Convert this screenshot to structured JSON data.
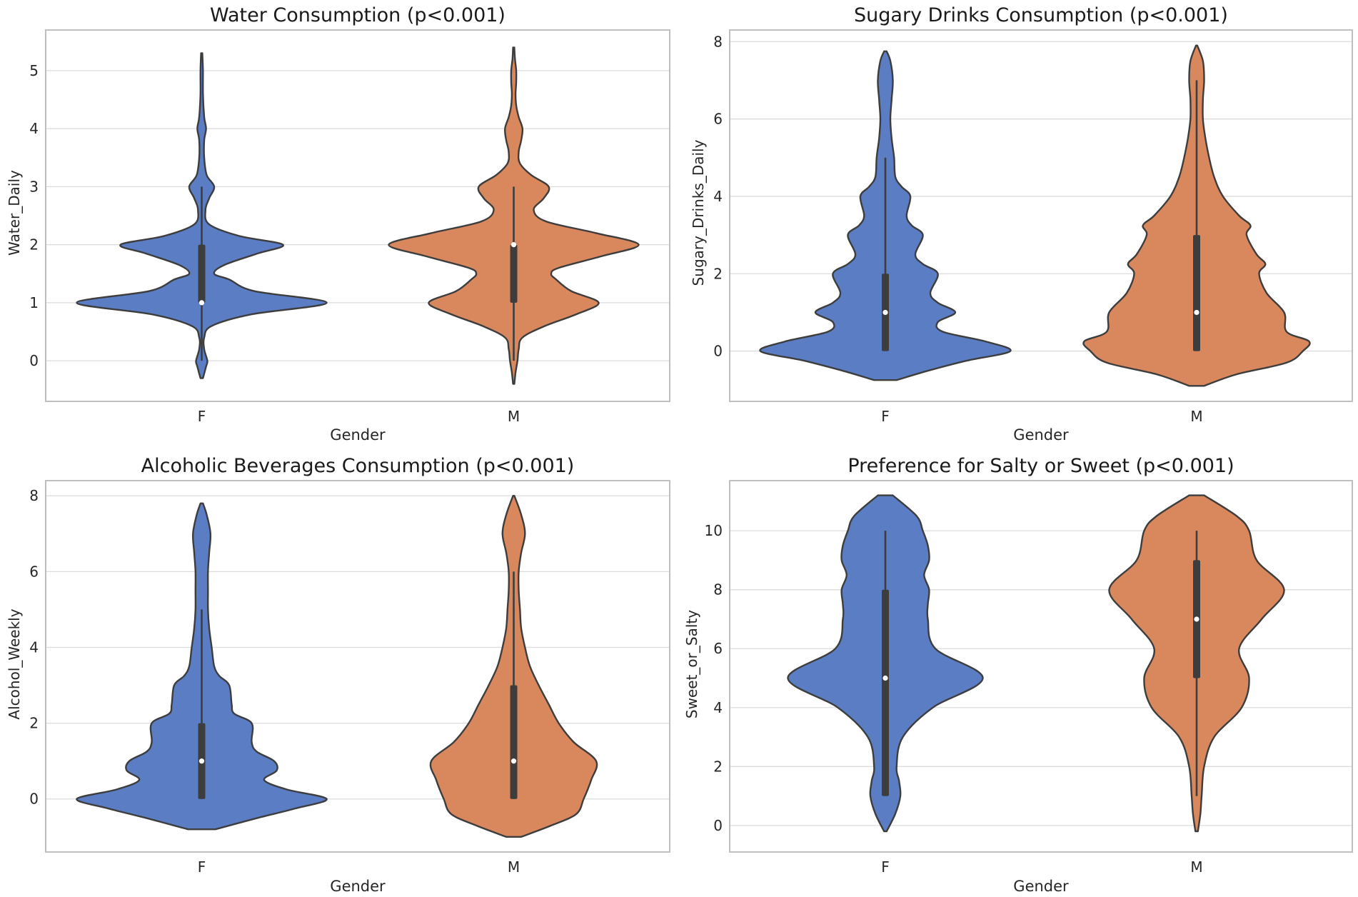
{
  "figure": {
    "colors": {
      "F": "#5a7dc4",
      "M": "#d9885e",
      "grid": "#dcdcdc",
      "axis_frame": "#bfbfbf",
      "outline": "#3d3d3d",
      "box": "#3d3d3d",
      "median": "#ffffff"
    }
  },
  "chart_data": [
    {
      "type": "violin",
      "title": "Water Consumption (p<0.001)",
      "xlabel": "Gender",
      "ylabel": "Water_Daily",
      "categories": [
        "F",
        "M"
      ],
      "ylim": [
        -0.7,
        5.7
      ],
      "yticks": [
        0,
        1,
        2,
        3,
        4,
        5
      ],
      "ytick_labels": [
        "0",
        "1",
        "2",
        "3",
        "4",
        "5"
      ],
      "violins": [
        {
          "category": "F",
          "q1": 1,
          "median": 1,
          "q3": 2,
          "whisker_low": 0,
          "whisker_high": 3,
          "density": [
            [
              -0.3,
              0.01
            ],
            [
              -0.1,
              0.035
            ],
            [
              0.0,
              0.045
            ],
            [
              0.2,
              0.02
            ],
            [
              0.4,
              0.02
            ],
            [
              0.6,
              0.08
            ],
            [
              0.8,
              0.4
            ],
            [
              1.0,
              1.0
            ],
            [
              1.2,
              0.42
            ],
            [
              1.4,
              0.22
            ],
            [
              1.5,
              0.1
            ],
            [
              1.65,
              0.18
            ],
            [
              1.85,
              0.45
            ],
            [
              2.0,
              0.65
            ],
            [
              2.15,
              0.3
            ],
            [
              2.35,
              0.06
            ],
            [
              2.6,
              0.03
            ],
            [
              2.8,
              0.06
            ],
            [
              3.0,
              0.1
            ],
            [
              3.2,
              0.04
            ],
            [
              3.5,
              0.02
            ],
            [
              3.8,
              0.02
            ],
            [
              4.0,
              0.035
            ],
            [
              4.2,
              0.02
            ],
            [
              4.6,
              0.01
            ],
            [
              5.0,
              0.01
            ],
            [
              5.3,
              0.005
            ]
          ]
        },
        {
          "category": "M",
          "q1": 1,
          "median": 2,
          "q3": 2,
          "whisker_low": 0,
          "whisker_high": 3,
          "density": [
            [
              -0.4,
              0.005
            ],
            [
              -0.2,
              0.015
            ],
            [
              0.0,
              0.03
            ],
            [
              0.2,
              0.04
            ],
            [
              0.4,
              0.07
            ],
            [
              0.6,
              0.25
            ],
            [
              0.8,
              0.5
            ],
            [
              1.0,
              0.68
            ],
            [
              1.2,
              0.46
            ],
            [
              1.4,
              0.34
            ],
            [
              1.5,
              0.3
            ],
            [
              1.6,
              0.36
            ],
            [
              1.8,
              0.7
            ],
            [
              2.0,
              1.0
            ],
            [
              2.2,
              0.66
            ],
            [
              2.4,
              0.26
            ],
            [
              2.6,
              0.16
            ],
            [
              2.8,
              0.24
            ],
            [
              3.0,
              0.28
            ],
            [
              3.2,
              0.14
            ],
            [
              3.4,
              0.05
            ],
            [
              3.6,
              0.04
            ],
            [
              3.8,
              0.06
            ],
            [
              4.0,
              0.07
            ],
            [
              4.2,
              0.04
            ],
            [
              4.4,
              0.02
            ],
            [
              4.6,
              0.015
            ],
            [
              4.8,
              0.02
            ],
            [
              5.0,
              0.02
            ],
            [
              5.2,
              0.01
            ],
            [
              5.4,
              0.005
            ]
          ]
        }
      ]
    },
    {
      "type": "violin",
      "title": "Sugary Drinks Consumption (p<0.001)",
      "xlabel": "Gender",
      "ylabel": "Sugary_Drinks_Daily",
      "categories": [
        "F",
        "M"
      ],
      "ylim": [
        -1.3,
        8.3
      ],
      "yticks": [
        0,
        2,
        4,
        6,
        8
      ],
      "ytick_labels": [
        "0",
        "2",
        "4",
        "6",
        "8"
      ],
      "violins": [
        {
          "category": "F",
          "q1": 0,
          "median": 1,
          "q3": 2,
          "whisker_low": 0,
          "whisker_high": 5,
          "density": [
            [
              -0.75,
              0.09
            ],
            [
              -0.5,
              0.35
            ],
            [
              -0.25,
              0.65
            ],
            [
              0.0,
              1.0
            ],
            [
              0.25,
              0.8
            ],
            [
              0.5,
              0.46
            ],
            [
              0.75,
              0.42
            ],
            [
              1.0,
              0.56
            ],
            [
              1.25,
              0.42
            ],
            [
              1.5,
              0.36
            ],
            [
              2.0,
              0.42
            ],
            [
              2.25,
              0.3
            ],
            [
              2.5,
              0.24
            ],
            [
              3.0,
              0.3
            ],
            [
              3.25,
              0.21
            ],
            [
              3.5,
              0.17
            ],
            [
              4.0,
              0.2
            ],
            [
              4.25,
              0.13
            ],
            [
              4.5,
              0.08
            ],
            [
              5.0,
              0.07
            ],
            [
              5.5,
              0.05
            ],
            [
              6.0,
              0.04
            ],
            [
              6.5,
              0.05
            ],
            [
              7.0,
              0.06
            ],
            [
              7.5,
              0.04
            ],
            [
              7.75,
              0.01
            ]
          ]
        },
        {
          "category": "M",
          "q1": 0,
          "median": 1,
          "q3": 3,
          "whisker_low": 0,
          "whisker_high": 7,
          "density": [
            [
              -0.9,
              0.06
            ],
            [
              -0.6,
              0.32
            ],
            [
              -0.3,
              0.72
            ],
            [
              0.0,
              0.85
            ],
            [
              0.25,
              0.9
            ],
            [
              0.5,
              0.72
            ],
            [
              1.0,
              0.7
            ],
            [
              1.5,
              0.56
            ],
            [
              2.0,
              0.5
            ],
            [
              2.25,
              0.55
            ],
            [
              2.5,
              0.48
            ],
            [
              3.0,
              0.4
            ],
            [
              3.25,
              0.43
            ],
            [
              3.5,
              0.34
            ],
            [
              4.0,
              0.21
            ],
            [
              4.5,
              0.14
            ],
            [
              5.0,
              0.1
            ],
            [
              5.5,
              0.07
            ],
            [
              6.0,
              0.05
            ],
            [
              6.5,
              0.05
            ],
            [
              7.0,
              0.06
            ],
            [
              7.5,
              0.05
            ],
            [
              7.9,
              0.005
            ]
          ]
        }
      ]
    },
    {
      "type": "violin",
      "title": "Alcoholic Beverages Consumption (p<0.001)",
      "xlabel": "Gender",
      "ylabel": "Alcohol_Weekly",
      "categories": [
        "F",
        "M"
      ],
      "ylim": [
        -1.4,
        8.4
      ],
      "yticks": [
        0,
        2,
        4,
        6,
        8
      ],
      "ytick_labels": [
        "0",
        "2",
        "4",
        "6",
        "8"
      ],
      "violins": [
        {
          "category": "F",
          "q1": 0,
          "median": 1,
          "q3": 2,
          "whisker_low": 0,
          "whisker_high": 5,
          "density": [
            [
              -0.8,
              0.11
            ],
            [
              -0.5,
              0.45
            ],
            [
              -0.25,
              0.75
            ],
            [
              0.0,
              1.0
            ],
            [
              0.25,
              0.68
            ],
            [
              0.5,
              0.5
            ],
            [
              0.75,
              0.6
            ],
            [
              1.0,
              0.58
            ],
            [
              1.25,
              0.44
            ],
            [
              1.5,
              0.4
            ],
            [
              2.0,
              0.4
            ],
            [
              2.25,
              0.26
            ],
            [
              2.5,
              0.24
            ],
            [
              3.0,
              0.22
            ],
            [
              3.25,
              0.14
            ],
            [
              3.5,
              0.1
            ],
            [
              4.0,
              0.08
            ],
            [
              4.5,
              0.06
            ],
            [
              5.0,
              0.05
            ],
            [
              5.5,
              0.05
            ],
            [
              6.0,
              0.05
            ],
            [
              6.5,
              0.06
            ],
            [
              7.0,
              0.07
            ],
            [
              7.5,
              0.04
            ],
            [
              7.8,
              0.01
            ]
          ]
        },
        {
          "category": "M",
          "q1": 0,
          "median": 1,
          "q3": 3,
          "whisker_low": 0,
          "whisker_high": 6,
          "density": [
            [
              -1.0,
              0.06
            ],
            [
              -0.7,
              0.3
            ],
            [
              -0.4,
              0.5
            ],
            [
              0.0,
              0.56
            ],
            [
              0.5,
              0.62
            ],
            [
              1.0,
              0.66
            ],
            [
              1.5,
              0.48
            ],
            [
              2.0,
              0.36
            ],
            [
              2.5,
              0.28
            ],
            [
              3.0,
              0.2
            ],
            [
              3.5,
              0.13
            ],
            [
              4.0,
              0.09
            ],
            [
              4.5,
              0.06
            ],
            [
              5.0,
              0.05
            ],
            [
              5.5,
              0.04
            ],
            [
              6.0,
              0.04
            ],
            [
              6.5,
              0.06
            ],
            [
              7.0,
              0.09
            ],
            [
              7.5,
              0.06
            ],
            [
              8.0,
              0.005
            ]
          ]
        }
      ]
    },
    {
      "type": "violin",
      "title": "Preference for Salty or Sweet (p<0.001)",
      "xlabel": "Gender",
      "ylabel": "Sweet_or_Salty",
      "categories": [
        "F",
        "M"
      ],
      "ylim": [
        -0.9,
        11.7
      ],
      "yticks": [
        0,
        2,
        4,
        6,
        8,
        10
      ],
      "ytick_labels": [
        "0",
        "2",
        "4",
        "6",
        "8",
        "10"
      ],
      "violins": [
        {
          "category": "F",
          "q1": 1,
          "median": 5,
          "q3": 8,
          "whisker_low": 1,
          "whisker_high": 10,
          "density": [
            [
              -0.2,
              0.01
            ],
            [
              0.4,
              0.08
            ],
            [
              1.0,
              0.12
            ],
            [
              1.5,
              0.11
            ],
            [
              2.0,
              0.09
            ],
            [
              3.0,
              0.14
            ],
            [
              4.0,
              0.38
            ],
            [
              5.0,
              0.78
            ],
            [
              6.0,
              0.4
            ],
            [
              7.0,
              0.34
            ],
            [
              7.5,
              0.34
            ],
            [
              8.0,
              0.35
            ],
            [
              8.5,
              0.31
            ],
            [
              9.0,
              0.35
            ],
            [
              9.5,
              0.34
            ],
            [
              10.0,
              0.3
            ],
            [
              10.5,
              0.25
            ],
            [
              11.2,
              0.06
            ]
          ]
        },
        {
          "category": "M",
          "q1": 5,
          "median": 7,
          "q3": 9,
          "whisker_low": 1,
          "whisker_high": 10,
          "density": [
            [
              -0.2,
              0.01
            ],
            [
              0.4,
              0.03
            ],
            [
              1.0,
              0.04
            ],
            [
              2.0,
              0.06
            ],
            [
              3.0,
              0.14
            ],
            [
              4.0,
              0.36
            ],
            [
              5.0,
              0.42
            ],
            [
              6.0,
              0.34
            ],
            [
              7.0,
              0.52
            ],
            [
              8.0,
              0.7
            ],
            [
              9.0,
              0.48
            ],
            [
              10.0,
              0.42
            ],
            [
              10.5,
              0.32
            ],
            [
              11.2,
              0.06
            ]
          ]
        }
      ]
    }
  ]
}
